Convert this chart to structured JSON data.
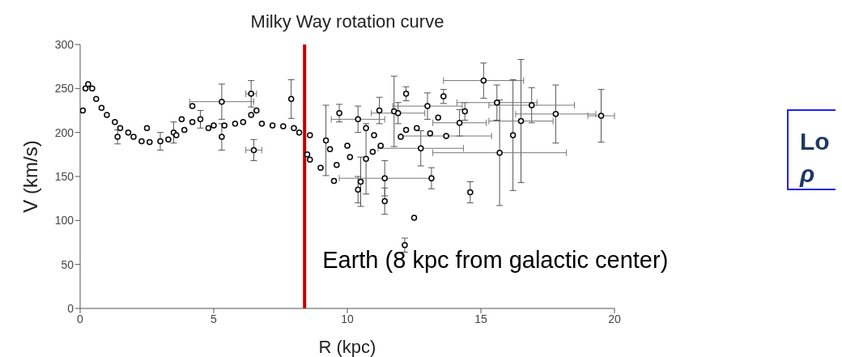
{
  "chart_data": {
    "type": "scatter",
    "title": "Milky Way rotation curve",
    "xlabel": "R (kpc)",
    "ylabel": "V (km/s)",
    "xlim": [
      0,
      20
    ],
    "xticks": [
      0,
      5,
      10,
      15,
      20
    ],
    "ylim": [
      0,
      300
    ],
    "yticks": [
      0,
      50,
      100,
      150,
      200,
      250,
      300
    ],
    "marker": "circle",
    "color": "#000000",
    "x": [
      0.1,
      0.2,
      0.3,
      0.45,
      0.6,
      0.8,
      1.0,
      1.3,
      1.4,
      1.5,
      1.8,
      2.0,
      2.3,
      2.5,
      2.6,
      3.0,
      3.3,
      3.5,
      3.6,
      3.8,
      3.9,
      4.2,
      4.2,
      4.5,
      4.8,
      5.0,
      5.3,
      5.3,
      5.4,
      5.8,
      6.1,
      6.4,
      6.4,
      6.5,
      6.6,
      6.8,
      7.2,
      7.6,
      7.9,
      8.0,
      8.2,
      8.5,
      8.6,
      8.6,
      9.0,
      9.2,
      9.35,
      9.5,
      9.6,
      9.7,
      10.0,
      10.1,
      10.4,
      10.4,
      10.5,
      10.7,
      10.7,
      10.95,
      11.0,
      11.2,
      11.25,
      11.4,
      11.4,
      11.75,
      11.9,
      12.0,
      12.15,
      12.2,
      12.2,
      12.5,
      12.6,
      12.75,
      13.0,
      13.1,
      13.15,
      13.4,
      13.6,
      13.7,
      14.2,
      14.4,
      14.6,
      15.1,
      15.6,
      15.7,
      16.2,
      16.5,
      16.9,
      17.8,
      19.5
    ],
    "values": [
      225,
      250,
      255,
      250,
      238,
      228,
      220,
      212,
      195,
      205,
      200,
      195,
      190,
      205,
      189,
      190,
      192,
      200,
      197,
      215,
      203,
      212,
      230,
      215,
      205,
      208,
      235,
      195,
      208,
      210,
      212,
      220,
      244,
      180,
      225,
      210,
      208,
      207,
      238,
      205,
      200,
      175,
      197,
      169,
      160,
      191,
      181,
      145,
      163,
      222,
      185,
      172,
      215,
      135,
      144,
      170,
      205,
      178,
      197,
      225,
      185,
      148,
      122,
      224,
      222,
      195,
      72,
      244,
      203,
      103,
      205,
      182,
      230,
      199,
      148,
      217,
      241,
      196,
      211,
      224,
      132,
      259,
      234,
      177,
      197,
      213,
      231,
      221,
      219
    ],
    "errors": [
      null,
      null,
      null,
      null,
      null,
      null,
      null,
      null,
      8,
      null,
      null,
      null,
      null,
      null,
      null,
      10,
      null,
      12,
      null,
      null,
      null,
      null,
      null,
      10,
      null,
      null,
      20,
      15,
      null,
      null,
      null,
      null,
      15,
      12,
      null,
      null,
      null,
      null,
      22,
      null,
      null,
      null,
      null,
      null,
      null,
      40,
      null,
      null,
      null,
      10,
      null,
      null,
      15,
      15,
      28,
      40,
      null,
      null,
      null,
      15,
      null,
      20,
      15,
      40,
      12,
      null,
      8,
      8,
      null,
      null,
      null,
      20,
      15,
      null,
      12,
      null,
      8,
      null,
      15,
      10,
      12,
      20,
      20,
      60,
      63,
      70,
      20,
      33,
      30
    ],
    "xerrors": [
      null,
      null,
      null,
      null,
      null,
      null,
      null,
      null,
      null,
      null,
      null,
      null,
      null,
      null,
      null,
      null,
      null,
      null,
      null,
      null,
      null,
      null,
      null,
      null,
      null,
      null,
      1.2,
      null,
      null,
      null,
      null,
      null,
      0.2,
      0.3,
      null,
      null,
      null,
      null,
      null,
      null,
      null,
      null,
      null,
      null,
      null,
      null,
      null,
      null,
      null,
      null,
      null,
      null,
      1.0,
      null,
      null,
      null,
      null,
      null,
      null,
      null,
      null,
      1.7,
      null,
      null,
      1.0,
      null,
      null,
      null,
      null,
      null,
      null,
      1.6,
      1.3,
      null,
      null,
      null,
      null,
      1.7,
      1.0,
      null,
      null,
      1.5,
      1.5,
      2.5,
      null,
      1.2,
      1.6,
      1.5,
      0.5
    ],
    "ref_lines": [
      {
        "axis": "x",
        "value": 8.4,
        "label": "Earth (8 kpc from galactic center)",
        "color": "#c00000"
      }
    ],
    "annotations": [
      "Lo",
      "ρ"
    ]
  }
}
